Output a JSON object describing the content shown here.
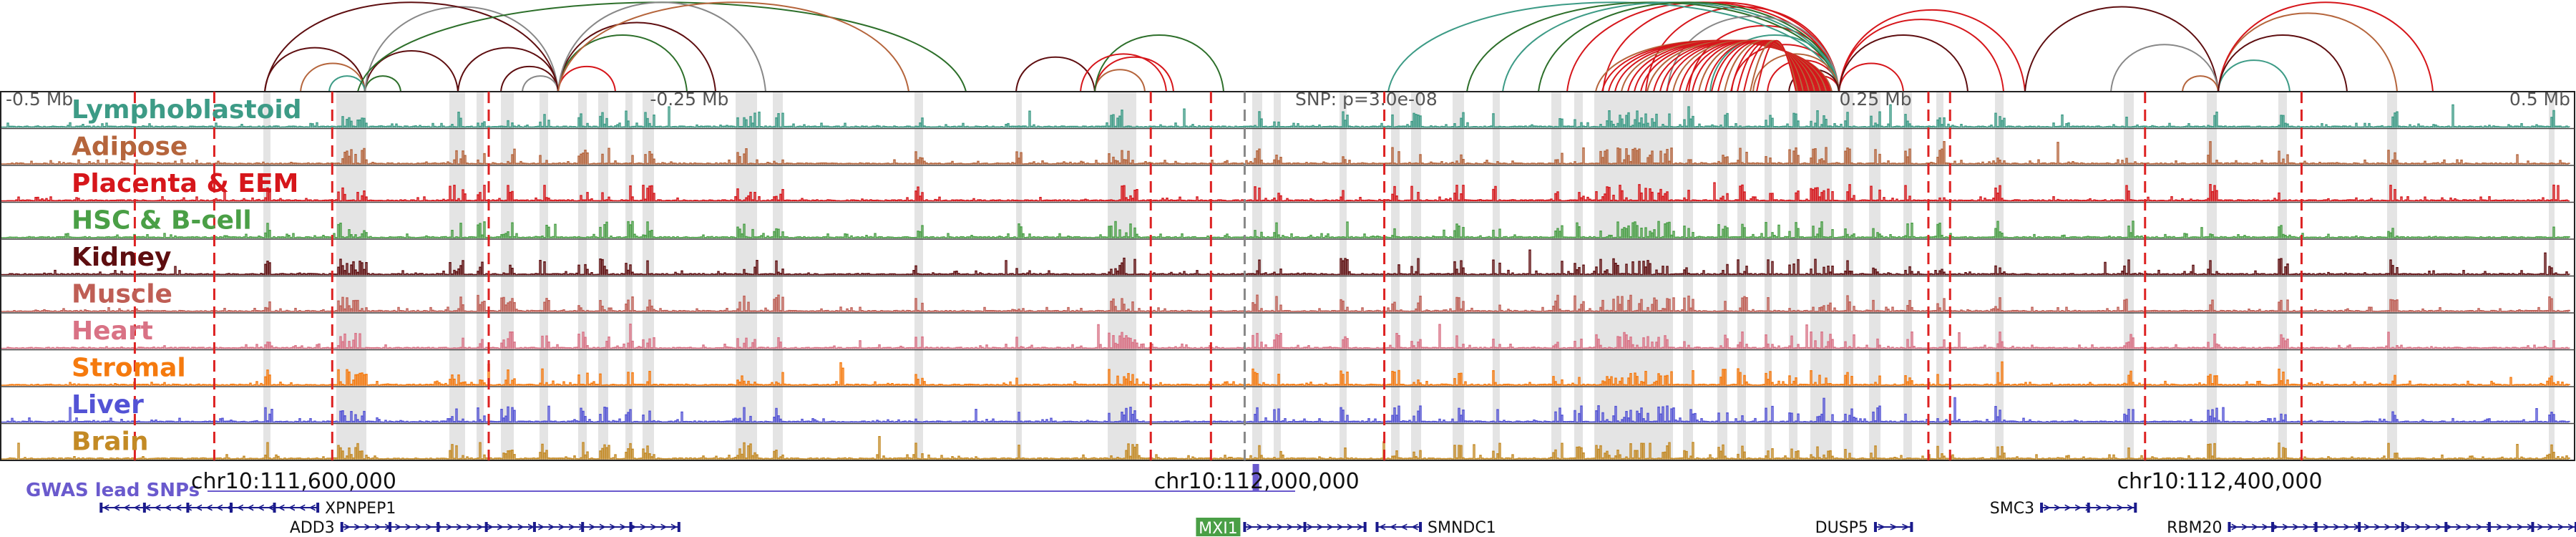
{
  "chart_data": {
    "type": "genome-browser",
    "chromosome": "chr10",
    "region_start": 111478000,
    "region_end": 112548000,
    "snp": {
      "label": "SNP: p=3.0e-08",
      "position": 111995000
    },
    "distance_axis": {
      "ticks": [
        {
          "label": "-0.5 Mb",
          "offset": -0.5
        },
        {
          "label": "-0.25 Mb",
          "offset": -0.25
        },
        {
          "label": "0.25 Mb",
          "offset": 0.25
        },
        {
          "label": "0.5 Mb",
          "offset": 0.5
        }
      ]
    },
    "genomic_ticks": [
      {
        "label": "chr10:111,600,000",
        "position": 111600000
      },
      {
        "label": "chr10:112,000,000",
        "position": 112000000
      },
      {
        "label": "chr10:112,400,000",
        "position": 112400000
      }
    ],
    "tracks": [
      {
        "name": "Lymphoblastoid",
        "color": "#3d9b86"
      },
      {
        "name": "Adipose",
        "color": "#b5653c"
      },
      {
        "name": "Placenta & EEM",
        "color": "#d6161b"
      },
      {
        "name": "HSC & B-cell",
        "color": "#4a9f46"
      },
      {
        "name": "Kidney",
        "color": "#5e0e10"
      },
      {
        "name": "Muscle",
        "color": "#bf5e55"
      },
      {
        "name": "Heart",
        "color": "#d97285"
      },
      {
        "name": "Stromal",
        "color": "#f57a0e"
      },
      {
        "name": "Liver",
        "color": "#5353d5"
      },
      {
        "name": "Brain",
        "color": "#c38a25"
      }
    ],
    "gwas_label": "GWAS lead SNPs",
    "gwas_color": "#6a5acd",
    "gwas_snp_positions": [
      111999500
    ],
    "genes": [
      {
        "name": "XPNPEP1",
        "start": 111520000,
        "end": 111610000,
        "strand": "-",
        "row": 0,
        "label_side": "right"
      },
      {
        "name": "ADD3",
        "start": 111620000,
        "end": 111760000,
        "strand": "+",
        "row": 1,
        "label_side": "left"
      },
      {
        "name": "MXI1",
        "start": 111995000,
        "end": 112045000,
        "strand": "+",
        "row": 1,
        "label_side": "left",
        "highlight": true
      },
      {
        "name": "SMNDC1",
        "start": 112050000,
        "end": 112068000,
        "strand": "-",
        "row": 1,
        "label_side": "right"
      },
      {
        "name": "DUSP5",
        "start": 112257000,
        "end": 112272000,
        "strand": "+",
        "row": 1,
        "label_side": "left"
      },
      {
        "name": "SMC3",
        "start": 112326000,
        "end": 112365000,
        "strand": "+",
        "row": 0,
        "label_side": "left"
      },
      {
        "name": "RBM20",
        "start": 112404000,
        "end": 112548000,
        "strand": "+",
        "row": 1,
        "label_side": "left"
      }
    ],
    "dashed_marker_positions": [
      111534000,
      111567000,
      111616000,
      111681000,
      111956000,
      111981000,
      111995000,
      112053000,
      112279000,
      112288000,
      112369000,
      112434000
    ]
  }
}
